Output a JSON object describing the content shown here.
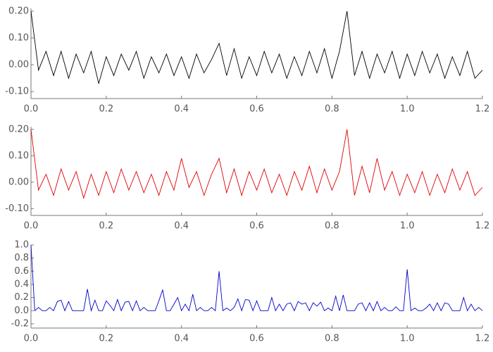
{
  "chart_data": [
    {
      "type": "line",
      "x": [
        0,
        0.02,
        0.04,
        0.06,
        0.08,
        0.1,
        0.12,
        0.14,
        0.16,
        0.18,
        0.2,
        0.22,
        0.24,
        0.26,
        0.28,
        0.3,
        0.32,
        0.34,
        0.36,
        0.38,
        0.4,
        0.42,
        0.44,
        0.46,
        0.48,
        0.5,
        0.52,
        0.54,
        0.56,
        0.58,
        0.6,
        0.62,
        0.64,
        0.66,
        0.68,
        0.7,
        0.72,
        0.74,
        0.76,
        0.78,
        0.8,
        0.82,
        0.84,
        0.86,
        0.88,
        0.9,
        0.92,
        0.94,
        0.96,
        0.98,
        1,
        1.02,
        1.04,
        1.06,
        1.08,
        1.1,
        1.12,
        1.14,
        1.16,
        1.18,
        1.2
      ],
      "series": [
        {
          "color": "#000000",
          "values": [
            0.2,
            -0.02,
            0.05,
            -0.04,
            0.05,
            -0.05,
            0.04,
            -0.03,
            0.05,
            -0.07,
            0.03,
            -0.04,
            0.04,
            -0.02,
            0.05,
            -0.05,
            0.03,
            -0.03,
            0.04,
            -0.04,
            0.03,
            -0.05,
            0.04,
            -0.03,
            0.02,
            0.08,
            -0.04,
            0.06,
            -0.05,
            0.03,
            -0.04,
            0.05,
            -0.03,
            0.04,
            -0.05,
            0.03,
            -0.04,
            0.05,
            -0.03,
            0.06,
            -0.05,
            0.05,
            0.2,
            -0.04,
            0.05,
            -0.05,
            0.04,
            -0.03,
            0.05,
            -0.05,
            0.04,
            -0.04,
            0.05,
            -0.03,
            0.04,
            -0.05,
            0.03,
            -0.04,
            0.05,
            -0.05,
            -0.02
          ]
        }
      ],
      "xlim": [
        0,
        1.2
      ],
      "xticks": [
        {
          "value": 0,
          "label": "0.0"
        },
        {
          "value": 0.2,
          "label": "0.2"
        },
        {
          "value": 0.4,
          "label": "0.4"
        },
        {
          "value": 0.6,
          "label": "0.6"
        },
        {
          "value": 0.8,
          "label": "0.8"
        },
        {
          "value": 1,
          "label": "1.0"
        },
        {
          "value": 1.2,
          "label": "1.2"
        }
      ],
      "ylim": [
        -0.11,
        0.21
      ],
      "yticks": [
        {
          "value": 0.2,
          "label": "0.20"
        },
        {
          "value": 0.1,
          "label": "0.10"
        },
        {
          "value": 0,
          "label": "0.00"
        },
        {
          "value": -0.1,
          "label": "-0.10"
        }
      ]
    },
    {
      "type": "line",
      "x": [
        0,
        0.02,
        0.04,
        0.06,
        0.08,
        0.1,
        0.12,
        0.14,
        0.16,
        0.18,
        0.2,
        0.22,
        0.24,
        0.26,
        0.28,
        0.3,
        0.32,
        0.34,
        0.36,
        0.38,
        0.4,
        0.42,
        0.44,
        0.46,
        0.48,
        0.5,
        0.52,
        0.54,
        0.56,
        0.58,
        0.6,
        0.62,
        0.64,
        0.66,
        0.68,
        0.7,
        0.72,
        0.74,
        0.76,
        0.78,
        0.8,
        0.82,
        0.84,
        0.86,
        0.88,
        0.9,
        0.92,
        0.94,
        0.96,
        0.98,
        1,
        1.02,
        1.04,
        1.06,
        1.08,
        1.1,
        1.12,
        1.14,
        1.16,
        1.18,
        1.2
      ],
      "series": [
        {
          "color": "#e00000",
          "values": [
            0.2,
            -0.03,
            0.03,
            -0.05,
            0.05,
            -0.03,
            0.04,
            -0.06,
            0.03,
            -0.05,
            0.04,
            -0.04,
            0.05,
            -0.03,
            0.04,
            -0.04,
            0.03,
            -0.05,
            0.04,
            -0.03,
            0.09,
            -0.02,
            0.04,
            -0.05,
            0.03,
            0.09,
            -0.04,
            0.05,
            -0.05,
            0.04,
            -0.03,
            0.05,
            -0.04,
            0.03,
            -0.05,
            0.04,
            -0.03,
            0.06,
            -0.04,
            0.05,
            -0.03,
            0.04,
            0.2,
            -0.05,
            0.06,
            -0.04,
            0.09,
            -0.03,
            0.04,
            -0.05,
            0.03,
            -0.04,
            0.04,
            -0.05,
            0.03,
            -0.04,
            0.05,
            -0.03,
            0.04,
            -0.05,
            -0.02
          ]
        }
      ],
      "xlim": [
        0,
        1.2
      ],
      "xticks": [
        {
          "value": 0,
          "label": "0.0"
        },
        {
          "value": 0.2,
          "label": "0.2"
        },
        {
          "value": 0.4,
          "label": "0.4"
        },
        {
          "value": 0.6,
          "label": "0.6"
        },
        {
          "value": 0.8,
          "label": "0.8"
        },
        {
          "value": 1,
          "label": "1.0"
        },
        {
          "value": 1.2,
          "label": "1.2"
        }
      ],
      "ylim": [
        -0.11,
        0.21
      ],
      "yticks": [
        {
          "value": 0.2,
          "label": "0.20"
        },
        {
          "value": 0.1,
          "label": "0.10"
        },
        {
          "value": 0,
          "label": "0.00"
        },
        {
          "value": -0.1,
          "label": "-0.10"
        }
      ]
    },
    {
      "type": "line",
      "x": [
        0,
        0.01,
        0.02,
        0.03,
        0.04,
        0.05,
        0.06,
        0.07,
        0.08,
        0.09,
        0.1,
        0.11,
        0.12,
        0.13,
        0.14,
        0.15,
        0.16,
        0.17,
        0.18,
        0.19,
        0.2,
        0.21,
        0.22,
        0.23,
        0.24,
        0.25,
        0.26,
        0.27,
        0.28,
        0.29,
        0.3,
        0.31,
        0.32,
        0.33,
        0.34,
        0.35,
        0.36,
        0.37,
        0.38,
        0.39,
        0.4,
        0.41,
        0.42,
        0.43,
        0.44,
        0.45,
        0.46,
        0.47,
        0.48,
        0.49,
        0.5,
        0.51,
        0.52,
        0.53,
        0.54,
        0.55,
        0.56,
        0.57,
        0.58,
        0.59,
        0.6,
        0.61,
        0.62,
        0.63,
        0.64,
        0.65,
        0.66,
        0.67,
        0.68,
        0.69,
        0.7,
        0.71,
        0.72,
        0.73,
        0.74,
        0.75,
        0.76,
        0.77,
        0.78,
        0.79,
        0.8,
        0.81,
        0.82,
        0.83,
        0.84,
        0.85,
        0.86,
        0.87,
        0.88,
        0.89,
        0.9,
        0.91,
        0.92,
        0.93,
        0.94,
        0.95,
        0.96,
        0.97,
        0.98,
        0.99,
        1,
        1.01,
        1.02,
        1.03,
        1.04,
        1.05,
        1.06,
        1.07,
        1.08,
        1.09,
        1.1,
        1.11,
        1.12,
        1.13,
        1.14,
        1.15,
        1.16,
        1.17,
        1.18,
        1.19,
        1.2
      ],
      "series": [
        {
          "color": "#0000cc",
          "values": [
            1,
            0,
            0.05,
            0,
            0,
            0.05,
            0,
            0.14,
            0.16,
            0,
            0.14,
            0,
            0,
            0,
            0,
            0.33,
            0,
            0.16,
            0,
            0,
            0.15,
            0.08,
            0,
            0.17,
            0,
            0.13,
            0.14,
            0,
            0.15,
            0,
            0.05,
            0,
            0,
            0,
            0.15,
            0.32,
            0,
            0,
            0.1,
            0.2,
            0,
            0.1,
            0,
            0.25,
            0,
            0.05,
            0,
            0,
            0.05,
            0,
            0.6,
            0,
            0.04,
            0,
            0.05,
            0.18,
            0,
            0.17,
            0.16,
            0,
            0.15,
            0,
            0,
            0,
            0.2,
            0,
            0.1,
            0,
            0.1,
            0.12,
            0,
            0.14,
            0.1,
            0.12,
            0,
            0.12,
            0.07,
            0.13,
            0,
            0.04,
            0,
            0.22,
            0,
            0.24,
            0,
            0,
            0,
            0.1,
            0.12,
            0,
            0.12,
            0,
            0.14,
            0,
            0.05,
            0,
            0,
            0.06,
            0,
            0,
            0.63,
            0,
            0.04,
            0,
            0,
            0.04,
            0.1,
            0,
            0.12,
            0,
            0.12,
            0.1,
            0,
            0,
            0,
            0.2,
            0,
            0.1,
            0,
            0.05,
            0
          ]
        }
      ],
      "xlim": [
        0,
        1.2
      ],
      "xticks": [
        {
          "value": 0,
          "label": "0.0"
        },
        {
          "value": 0.2,
          "label": "0.2"
        },
        {
          "value": 0.4,
          "label": "0.4"
        },
        {
          "value": 0.6,
          "label": "0.6"
        },
        {
          "value": 0.8,
          "label": "0.8"
        },
        {
          "value": 1,
          "label": "1.0"
        },
        {
          "value": 1.2,
          "label": "1.2"
        }
      ],
      "ylim": [
        -0.2,
        1.0
      ],
      "yticks": [
        {
          "value": 1,
          "label": "1.0"
        },
        {
          "value": 0.8,
          "label": "0.8"
        },
        {
          "value": 0.6,
          "label": "0.6"
        },
        {
          "value": 0.4,
          "label": "0.4"
        },
        {
          "value": 0.2,
          "label": "0.2"
        },
        {
          "value": 0,
          "label": "0.0"
        },
        {
          "value": -0.2,
          "label": "-0.2"
        }
      ]
    }
  ]
}
